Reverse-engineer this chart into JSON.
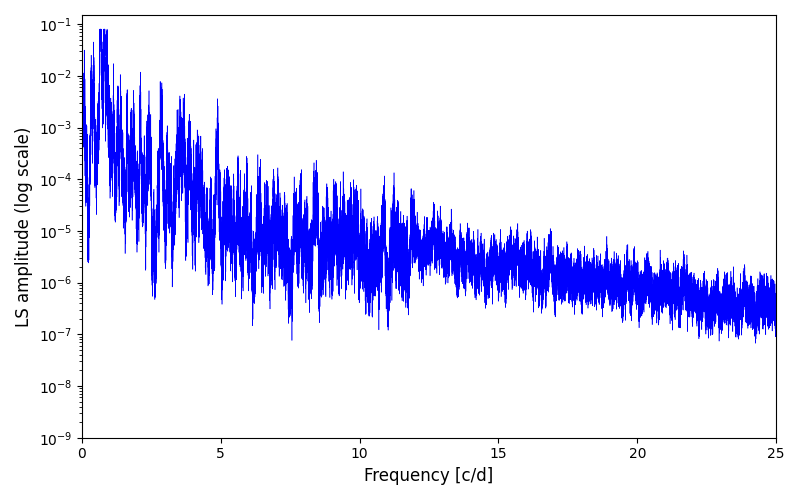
{
  "xlabel": "Frequency [c/d]",
  "ylabel": "LS amplitude (log scale)",
  "xlim": [
    0,
    25
  ],
  "ylim": [
    1e-09,
    0.15
  ],
  "line_color": "#0000ff",
  "line_width": 0.4,
  "figsize": [
    8.0,
    5.0
  ],
  "dpi": 100,
  "seed": 42,
  "n_points": 50000,
  "freq_max": 25.0,
  "background_color": "#ffffff"
}
